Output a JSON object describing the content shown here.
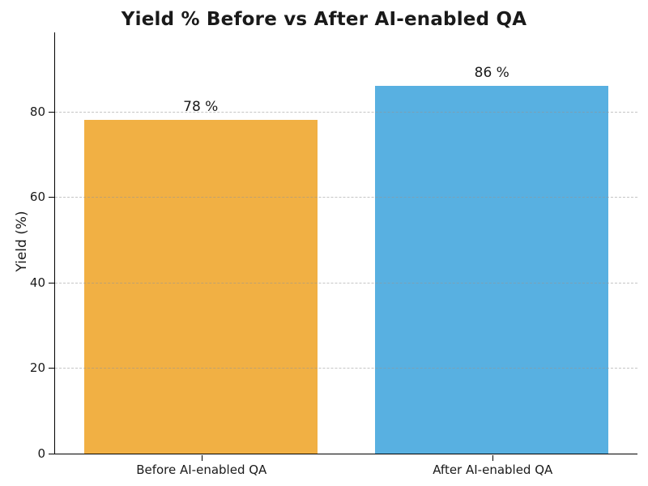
{
  "chart_data": {
    "type": "bar",
    "title": "Yield % Before vs After AI-enabled QA",
    "xlabel": "",
    "ylabel": "Yield (%)",
    "categories": [
      "Before AI-enabled QA",
      "After AI-enabled QA"
    ],
    "values": [
      78,
      86
    ],
    "value_labels": [
      "78 %",
      "86 %"
    ],
    "bar_colors": [
      "#f1b044",
      "#58b0e1"
    ],
    "bar_width_fraction": 0.8,
    "ylim": [
      0,
      98.5
    ],
    "yticks": [
      0,
      20,
      40,
      60,
      80
    ],
    "grid": {
      "axis": "y",
      "style": "dashed",
      "color": "#a0a0a0",
      "over_bars": true
    },
    "legend": "none",
    "background": "#ffffff",
    "spine_color": "#000000",
    "text_color": "#1a1a1a"
  }
}
